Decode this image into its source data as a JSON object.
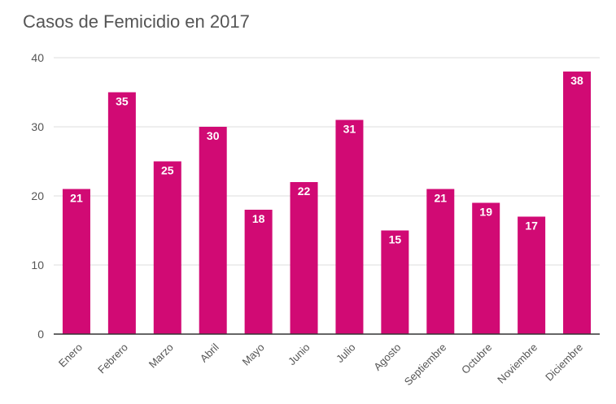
{
  "chart_data": {
    "type": "bar",
    "title": "Casos de Femicidio en 2017",
    "xlabel": "",
    "ylabel": "",
    "categories": [
      "Enero",
      "Febrero",
      "Marzo",
      "Abril",
      "Mayo",
      "Junio",
      "Julio",
      "Agosto",
      "Septiembre",
      "Octubre",
      "Noviembre",
      "Diciembre"
    ],
    "values": [
      21,
      35,
      25,
      30,
      18,
      22,
      31,
      15,
      21,
      19,
      17,
      38
    ],
    "ylim": [
      0,
      40
    ],
    "yticks": [
      "0",
      "10",
      "20",
      "30",
      "40"
    ],
    "grid": true,
    "legend": "none",
    "bar_color": "#d10a74",
    "label_color": "#ffffff"
  }
}
